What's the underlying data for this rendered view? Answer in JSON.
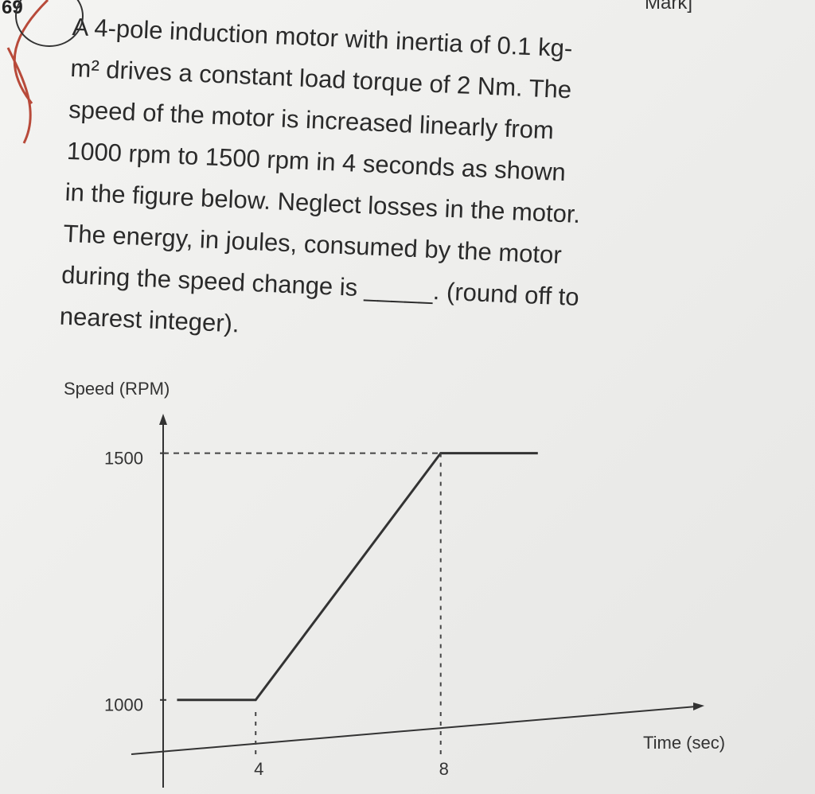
{
  "question": {
    "number": "69",
    "header": "Mark]",
    "lines": [
      "A 4-pole induction motor with inertia of 0.1 kg-",
      "m² drives a constant load torque of 2 Nm. The",
      "speed of the motor is increased linearly from",
      "1000 rpm to 1500 rpm in 4 seconds as shown",
      "in the figure below. Neglect losses in the motor.",
      "The energy, in joules, consumed by the motor",
      "during the speed change is _____. (round off to",
      "nearest integer)."
    ]
  },
  "chart_data": {
    "type": "line",
    "y_label": "Speed (RPM)",
    "x_label": "Time (sec)",
    "series": [
      {
        "color": "#333333",
        "x": [
          2.3,
          4,
          8,
          10.1
        ],
        "values": [
          1000,
          1000,
          1500,
          1500
        ]
      }
    ],
    "xlim": [
      2,
      13.7
    ],
    "ylim": [
      890,
      1580
    ],
    "xticks": [
      4,
      8
    ],
    "yticks": [
      1000,
      1500
    ]
  }
}
